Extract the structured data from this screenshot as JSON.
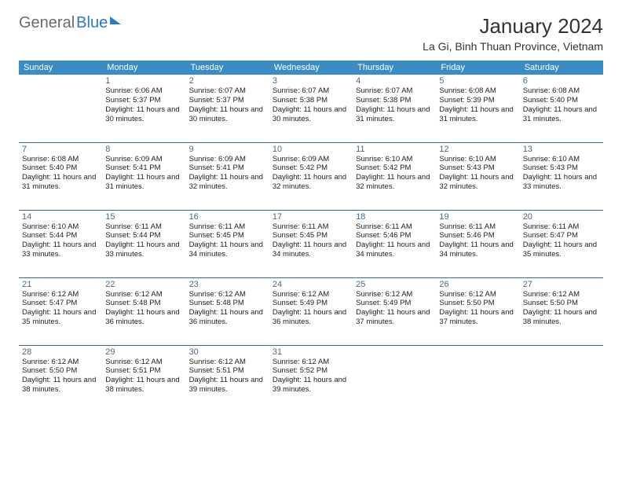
{
  "brand": {
    "part1": "General",
    "part2": "Blue"
  },
  "title": "January 2024",
  "location": "La Gi, Binh Thuan Province, Vietnam",
  "colors": {
    "header_bg": "#3b8bc4",
    "header_text": "#ffffff",
    "row_divider": "#3b6a8e",
    "daynum_color": "#4a6a88",
    "body_text": "#222222",
    "logo_gray": "#6b6b6b",
    "logo_blue": "#2a7bbf",
    "background": "#ffffff"
  },
  "day_headers": [
    "Sunday",
    "Monday",
    "Tuesday",
    "Wednesday",
    "Thursday",
    "Friday",
    "Saturday"
  ],
  "weeks": [
    [
      {
        "day": "",
        "sunrise": "",
        "sunset": "",
        "daylight": ""
      },
      {
        "day": "1",
        "sunrise": "Sunrise: 6:06 AM",
        "sunset": "Sunset: 5:37 PM",
        "daylight": "Daylight: 11 hours and 30 minutes."
      },
      {
        "day": "2",
        "sunrise": "Sunrise: 6:07 AM",
        "sunset": "Sunset: 5:37 PM",
        "daylight": "Daylight: 11 hours and 30 minutes."
      },
      {
        "day": "3",
        "sunrise": "Sunrise: 6:07 AM",
        "sunset": "Sunset: 5:38 PM",
        "daylight": "Daylight: 11 hours and 30 minutes."
      },
      {
        "day": "4",
        "sunrise": "Sunrise: 6:07 AM",
        "sunset": "Sunset: 5:38 PM",
        "daylight": "Daylight: 11 hours and 31 minutes."
      },
      {
        "day": "5",
        "sunrise": "Sunrise: 6:08 AM",
        "sunset": "Sunset: 5:39 PM",
        "daylight": "Daylight: 11 hours and 31 minutes."
      },
      {
        "day": "6",
        "sunrise": "Sunrise: 6:08 AM",
        "sunset": "Sunset: 5:40 PM",
        "daylight": "Daylight: 11 hours and 31 minutes."
      }
    ],
    [
      {
        "day": "7",
        "sunrise": "Sunrise: 6:08 AM",
        "sunset": "Sunset: 5:40 PM",
        "daylight": "Daylight: 11 hours and 31 minutes."
      },
      {
        "day": "8",
        "sunrise": "Sunrise: 6:09 AM",
        "sunset": "Sunset: 5:41 PM",
        "daylight": "Daylight: 11 hours and 31 minutes."
      },
      {
        "day": "9",
        "sunrise": "Sunrise: 6:09 AM",
        "sunset": "Sunset: 5:41 PM",
        "daylight": "Daylight: 11 hours and 32 minutes."
      },
      {
        "day": "10",
        "sunrise": "Sunrise: 6:09 AM",
        "sunset": "Sunset: 5:42 PM",
        "daylight": "Daylight: 11 hours and 32 minutes."
      },
      {
        "day": "11",
        "sunrise": "Sunrise: 6:10 AM",
        "sunset": "Sunset: 5:42 PM",
        "daylight": "Daylight: 11 hours and 32 minutes."
      },
      {
        "day": "12",
        "sunrise": "Sunrise: 6:10 AM",
        "sunset": "Sunset: 5:43 PM",
        "daylight": "Daylight: 11 hours and 32 minutes."
      },
      {
        "day": "13",
        "sunrise": "Sunrise: 6:10 AM",
        "sunset": "Sunset: 5:43 PM",
        "daylight": "Daylight: 11 hours and 33 minutes."
      }
    ],
    [
      {
        "day": "14",
        "sunrise": "Sunrise: 6:10 AM",
        "sunset": "Sunset: 5:44 PM",
        "daylight": "Daylight: 11 hours and 33 minutes."
      },
      {
        "day": "15",
        "sunrise": "Sunrise: 6:11 AM",
        "sunset": "Sunset: 5:44 PM",
        "daylight": "Daylight: 11 hours and 33 minutes."
      },
      {
        "day": "16",
        "sunrise": "Sunrise: 6:11 AM",
        "sunset": "Sunset: 5:45 PM",
        "daylight": "Daylight: 11 hours and 34 minutes."
      },
      {
        "day": "17",
        "sunrise": "Sunrise: 6:11 AM",
        "sunset": "Sunset: 5:45 PM",
        "daylight": "Daylight: 11 hours and 34 minutes."
      },
      {
        "day": "18",
        "sunrise": "Sunrise: 6:11 AM",
        "sunset": "Sunset: 5:46 PM",
        "daylight": "Daylight: 11 hours and 34 minutes."
      },
      {
        "day": "19",
        "sunrise": "Sunrise: 6:11 AM",
        "sunset": "Sunset: 5:46 PM",
        "daylight": "Daylight: 11 hours and 34 minutes."
      },
      {
        "day": "20",
        "sunrise": "Sunrise: 6:11 AM",
        "sunset": "Sunset: 5:47 PM",
        "daylight": "Daylight: 11 hours and 35 minutes."
      }
    ],
    [
      {
        "day": "21",
        "sunrise": "Sunrise: 6:12 AM",
        "sunset": "Sunset: 5:47 PM",
        "daylight": "Daylight: 11 hours and 35 minutes."
      },
      {
        "day": "22",
        "sunrise": "Sunrise: 6:12 AM",
        "sunset": "Sunset: 5:48 PM",
        "daylight": "Daylight: 11 hours and 36 minutes."
      },
      {
        "day": "23",
        "sunrise": "Sunrise: 6:12 AM",
        "sunset": "Sunset: 5:48 PM",
        "daylight": "Daylight: 11 hours and 36 minutes."
      },
      {
        "day": "24",
        "sunrise": "Sunrise: 6:12 AM",
        "sunset": "Sunset: 5:49 PM",
        "daylight": "Daylight: 11 hours and 36 minutes."
      },
      {
        "day": "25",
        "sunrise": "Sunrise: 6:12 AM",
        "sunset": "Sunset: 5:49 PM",
        "daylight": "Daylight: 11 hours and 37 minutes."
      },
      {
        "day": "26",
        "sunrise": "Sunrise: 6:12 AM",
        "sunset": "Sunset: 5:50 PM",
        "daylight": "Daylight: 11 hours and 37 minutes."
      },
      {
        "day": "27",
        "sunrise": "Sunrise: 6:12 AM",
        "sunset": "Sunset: 5:50 PM",
        "daylight": "Daylight: 11 hours and 38 minutes."
      }
    ],
    [
      {
        "day": "28",
        "sunrise": "Sunrise: 6:12 AM",
        "sunset": "Sunset: 5:50 PM",
        "daylight": "Daylight: 11 hours and 38 minutes."
      },
      {
        "day": "29",
        "sunrise": "Sunrise: 6:12 AM",
        "sunset": "Sunset: 5:51 PM",
        "daylight": "Daylight: 11 hours and 38 minutes."
      },
      {
        "day": "30",
        "sunrise": "Sunrise: 6:12 AM",
        "sunset": "Sunset: 5:51 PM",
        "daylight": "Daylight: 11 hours and 39 minutes."
      },
      {
        "day": "31",
        "sunrise": "Sunrise: 6:12 AM",
        "sunset": "Sunset: 5:52 PM",
        "daylight": "Daylight: 11 hours and 39 minutes."
      },
      {
        "day": "",
        "sunrise": "",
        "sunset": "",
        "daylight": ""
      },
      {
        "day": "",
        "sunrise": "",
        "sunset": "",
        "daylight": ""
      },
      {
        "day": "",
        "sunrise": "",
        "sunset": "",
        "daylight": ""
      }
    ]
  ]
}
